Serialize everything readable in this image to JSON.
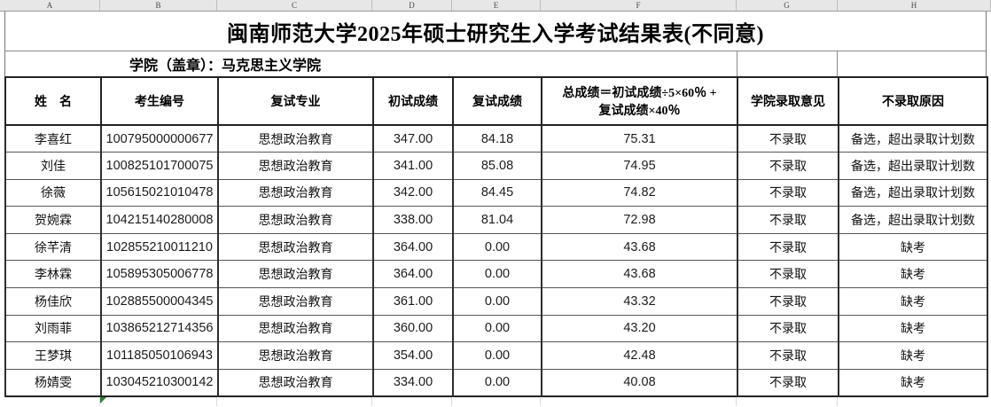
{
  "colors": {
    "flag_green": "#2e7d32",
    "grid_dark": "#2e2e2e",
    "grid_faint": "#dcdcdc",
    "letter_bar_bg": "#e7e7e7"
  },
  "sheet": {
    "column_letters": [
      "A",
      "B",
      "C",
      "D",
      "E",
      "F",
      "G",
      "H"
    ],
    "title": "闽南师范大学2025年硕士研究生入学考试结果表(不同意)",
    "school_label": "学院（盖章）：马克思主义学院",
    "headers": [
      "姓　名",
      "考生编号",
      "复试专业",
      "初试成绩",
      "复试成绩",
      "总成绩＝初试成绩÷5×60％ +\n复试成绩×40％",
      "学院录取意见",
      "不录取原因"
    ],
    "rows": [
      [
        "李喜红",
        "100795000000677",
        "思想政治教育",
        "347.00",
        "84.18",
        "75.31",
        "不录取",
        "备选，超出录取计划数"
      ],
      [
        "刘佳",
        "100825101700075",
        "思想政治教育",
        "341.00",
        "85.08",
        "74.95",
        "不录取",
        "备选，超出录取计划数"
      ],
      [
        "徐薇",
        "105615021010478",
        "思想政治教育",
        "342.00",
        "84.45",
        "74.82",
        "不录取",
        "备选，超出录取计划数"
      ],
      [
        "贺婉霖",
        "104215140280008",
        "思想政治教育",
        "338.00",
        "81.04",
        "72.98",
        "不录取",
        "备选，超出录取计划数"
      ],
      [
        "徐芊清",
        "102855210011210",
        "思想政治教育",
        "364.00",
        "0.00",
        "43.68",
        "不录取",
        "缺考"
      ],
      [
        "李林霖",
        "105895305006778",
        "思想政治教育",
        "364.00",
        "0.00",
        "43.68",
        "不录取",
        "缺考"
      ],
      [
        "杨佳欣",
        "102885500004345",
        "思想政治教育",
        "361.00",
        "0.00",
        "43.32",
        "不录取",
        "缺考"
      ],
      [
        "刘雨菲",
        "103865212714356",
        "思想政治教育",
        "360.00",
        "0.00",
        "43.20",
        "不录取",
        "缺考"
      ],
      [
        "王梦琪",
        "101185050106943",
        "思想政治教育",
        "354.00",
        "0.00",
        "42.48",
        "不录取",
        "缺考"
      ],
      [
        "杨婧雯",
        "103045210300142",
        "思想政治教育",
        "334.00",
        "0.00",
        "40.08",
        "不录取",
        "缺考"
      ]
    ]
  }
}
